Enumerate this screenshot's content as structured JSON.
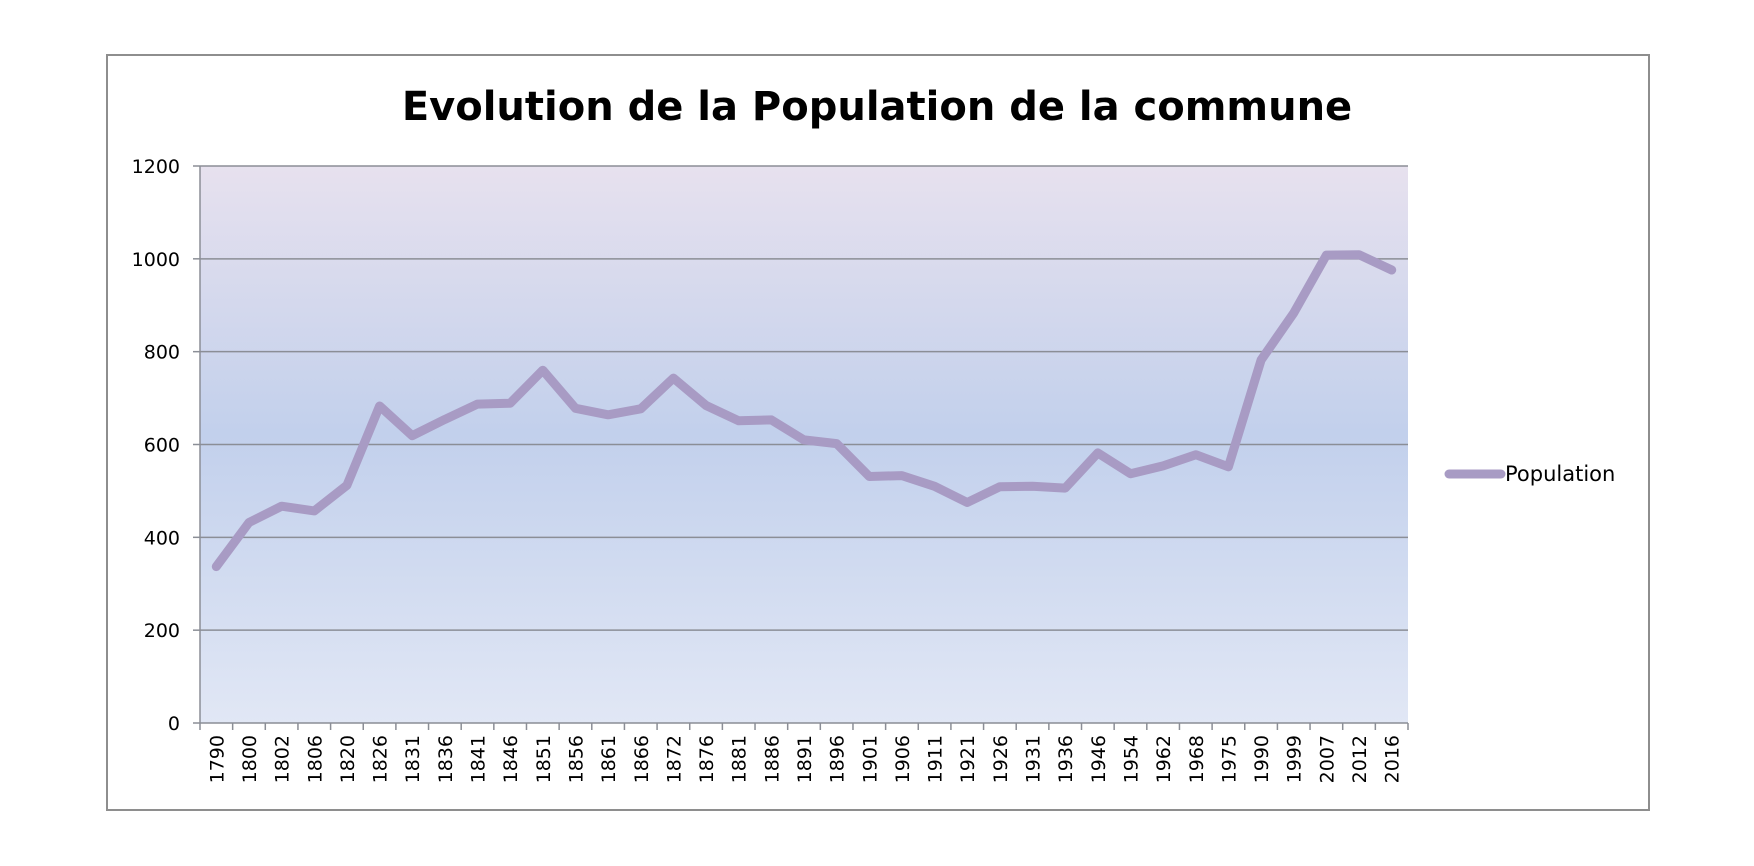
{
  "chart_data": {
    "type": "line",
    "title": "Evolution de la Population de la commune",
    "xlabel": "",
    "ylabel": "",
    "ylim": [
      0,
      1200
    ],
    "yticks": [
      0,
      200,
      400,
      600,
      800,
      1000,
      1200
    ],
    "grid": true,
    "legend_position": "right",
    "categories": [
      "1790",
      "1800",
      "1802",
      "1806",
      "1820",
      "1826",
      "1831",
      "1836",
      "1841",
      "1846",
      "1851",
      "1856",
      "1861",
      "1866",
      "1872",
      "1876",
      "1881",
      "1886",
      "1891",
      "1896",
      "1901",
      "1906",
      "1911",
      "1921",
      "1926",
      "1931",
      "1936",
      "1946",
      "1954",
      "1962",
      "1968",
      "1975",
      "1990",
      "1999",
      "2007",
      "2012",
      "2016"
    ],
    "series": [
      {
        "name": "Population",
        "color": "#a89bc4",
        "values": [
          337,
          432,
          467,
          457,
          512,
          683,
          619,
          654,
          687,
          689,
          760,
          678,
          664,
          677,
          743,
          684,
          651,
          653,
          610,
          602,
          531,
          533,
          510,
          475,
          509,
          510,
          506,
          582,
          537,
          554,
          578,
          552,
          782,
          883,
          1008,
          1009,
          976
        ]
      }
    ],
    "colors": {
      "plot_top": "#e7e1ee",
      "plot_middle": "#c2d0ec",
      "plot_bottom": "#e1e7f5",
      "gridline": "#8b8e96",
      "frame": "#8e8e8e"
    }
  }
}
